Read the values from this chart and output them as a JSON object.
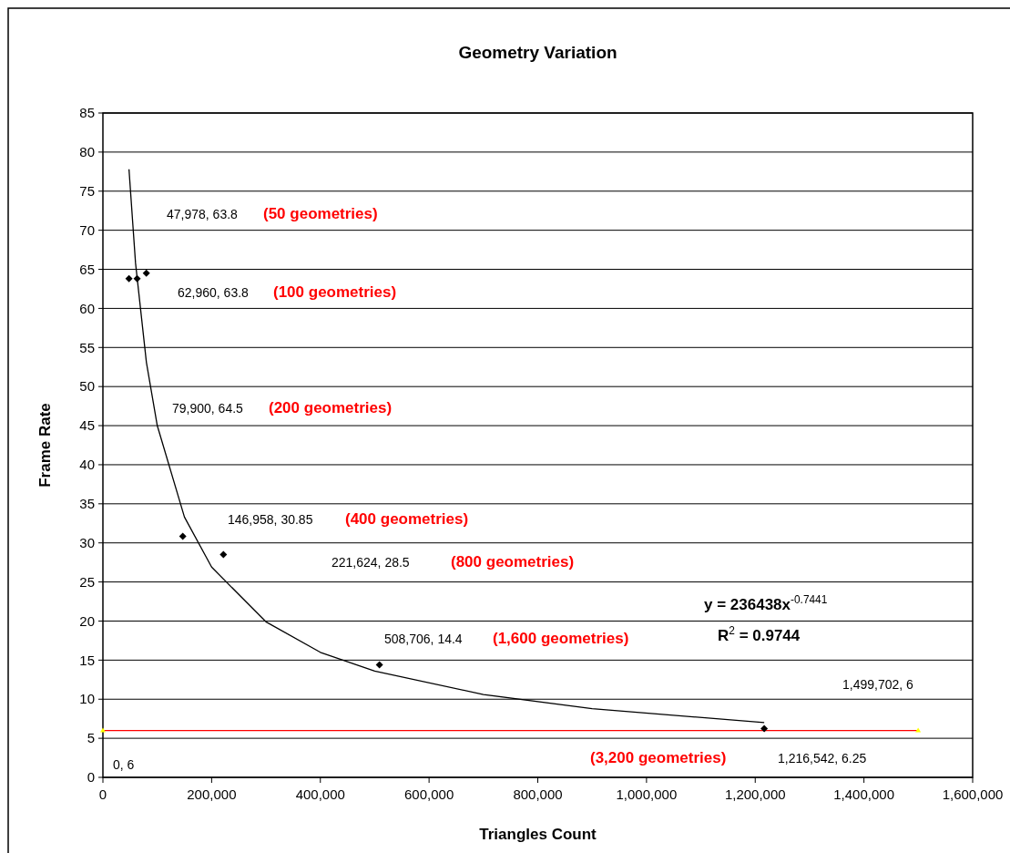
{
  "chart_data": {
    "type": "scatter",
    "title": "Geometry Variation",
    "xlabel": "Triangles Count",
    "ylabel": "Frame Rate",
    "xlim": [
      0,
      1600000
    ],
    "xticks": [
      {
        "value": 0,
        "label": "0"
      },
      {
        "value": 200000,
        "label": "200,000"
      },
      {
        "value": 400000,
        "label": "400,000"
      },
      {
        "value": 600000,
        "label": "600,000"
      },
      {
        "value": 800000,
        "label": "800,000"
      },
      {
        "value": 1000000,
        "label": "1,000,000"
      },
      {
        "value": 1200000,
        "label": "1,200,000"
      },
      {
        "value": 1400000,
        "label": "1,400,000"
      },
      {
        "value": 1600000,
        "label": "1,600,000"
      }
    ],
    "ylim": [
      0,
      85
    ],
    "yticks": [
      0,
      5,
      10,
      15,
      20,
      25,
      30,
      35,
      40,
      45,
      50,
      55,
      60,
      65,
      70,
      75,
      80,
      85
    ],
    "grid": "y",
    "series": [
      {
        "color": "#000000",
        "marker": "diamond",
        "x": [
          47978,
          62960,
          79900,
          146958,
          221624,
          508706,
          1216542
        ],
        "values": [
          63.8,
          63.8,
          64.5,
          30.85,
          28.5,
          14.4,
          6.25
        ]
      },
      {
        "type": "line",
        "color": "#ff0000",
        "marker": "triangle",
        "x": [
          0,
          1499702
        ],
        "values": [
          6,
          6
        ]
      },
      {
        "type": "line",
        "color": "#000000",
        "marker": "none",
        "x": [
          47978,
          60000,
          80000,
          100000,
          150000,
          200000,
          300000,
          400000,
          500000,
          700000,
          900000,
          1216542
        ],
        "values": [
          77.8,
          65.8,
          53.1,
          45.0,
          33.3,
          26.9,
          19.9,
          16.0,
          13.6,
          10.6,
          8.8,
          7.0
        ]
      }
    ],
    "annotations": [
      "47,978, 63.8",
      "(50 geometries)",
      "62,960, 63.8",
      "(100 geometries)",
      "79,900, 64.5",
      "(200 geometries)",
      "146,958, 30.85",
      "(400 geometries)",
      "221,624, 28.5",
      "(800 geometries)",
      "508,706, 14.4",
      "(1,600 geometries)",
      "(3,200 geometries)",
      "1,216,542, 6.25",
      "0, 6",
      "1,499,702, 6",
      "y = 236438x$^{-0.7441}$",
      "R$^{2}$ = 0.9744"
    ]
  }
}
